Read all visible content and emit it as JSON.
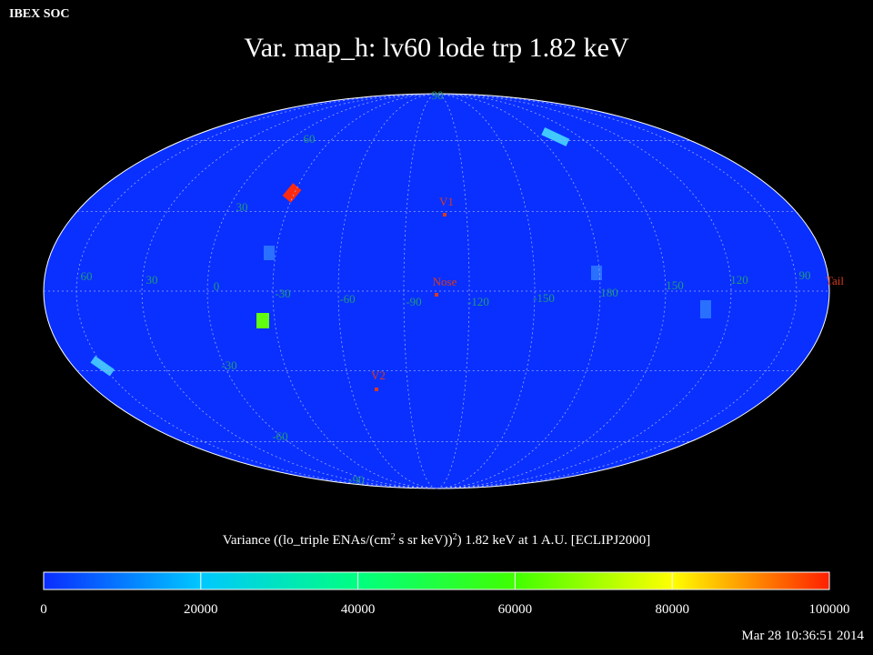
{
  "header": "IBEX SOC",
  "title": "Var. map_h: lv60 lode trp 1.82 keV",
  "map": {
    "latitude_labels": [
      "90",
      "60",
      "30",
      "-30",
      "-60",
      "-90"
    ],
    "longitude_labels": [
      "60",
      "30",
      "0",
      "-30",
      "-60",
      "-90",
      "-120",
      "-150",
      "180",
      "150",
      "120",
      "90"
    ],
    "markers": [
      "V1",
      "Nose",
      "V2",
      "Tail"
    ]
  },
  "colorbar": {
    "label_parts": [
      "Variance ((lo_triple ENAs/(cm",
      "2",
      " s sr keV))",
      "2",
      ") 1.82 keV at 1 A.U. [ECLIPJ2000]"
    ],
    "range": [
      0,
      100000
    ],
    "ticks": [
      0,
      20000,
      40000,
      60000,
      80000,
      100000
    ]
  },
  "timestamp": "Mar 28 10:36:51 2014"
}
